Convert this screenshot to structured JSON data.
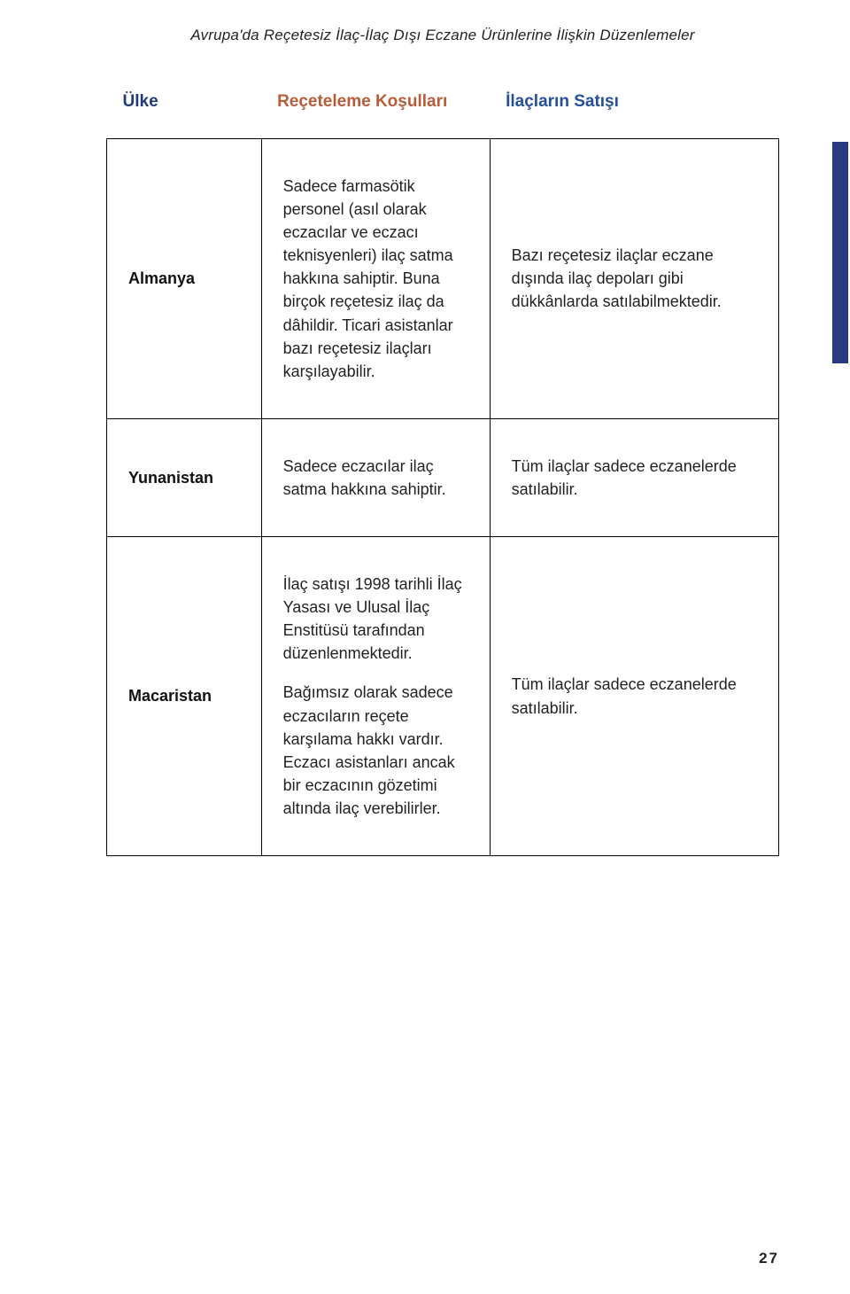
{
  "running_title": "Avrupa'da Reçetesiz İlaç-İlaç Dışı Eczane Ürünlerine İlişkin Düzenlemeler",
  "headers": {
    "country": "Ülke",
    "conditions": "Reçeteleme Koşulları",
    "sales": "İlaçların Satışı"
  },
  "header_colors": {
    "country": "#213a7a",
    "conditions": "#b85c3a",
    "sales": "#254e9c"
  },
  "side_tab_color": "#263b80",
  "border_color": "#000000",
  "text_color": "#231f20",
  "rows": [
    {
      "country": "Almanya",
      "conditions_p1": "Sadece farmasötik personel (asıl olarak eczacılar ve eczacı teknisyenleri) ilaç satma hakkına sahiptir. Buna birçok reçetesiz ilaç da dâhildir. Ticari asistanlar bazı reçetesiz ilaçları karşılayabilir.",
      "conditions_p2": "",
      "sales": "Bazı reçetesiz ilaçlar eczane dışında ilaç depoları gibi dükkânlarda satılabilmektedir."
    },
    {
      "country": "Yunanistan",
      "conditions_p1": "Sadece eczacılar ilaç satma hakkına sahiptir.",
      "conditions_p2": "",
      "sales": "Tüm ilaçlar sadece eczanelerde satılabilir."
    },
    {
      "country": "Macaristan",
      "conditions_p1": "İlaç satışı 1998 tarihli İlaç Yasası ve Ulusal İlaç Enstitüsü tarafından düzenlenmektedir.",
      "conditions_p2": "Bağımsız olarak sadece eczacıların reçete karşılama hakkı vardır. Eczacı asistanları ancak bir eczacının gözetimi altında ilaç verebilirler.",
      "sales": "Tüm ilaçlar sadece eczanelerde satılabilir."
    }
  ],
  "page_number": "27"
}
